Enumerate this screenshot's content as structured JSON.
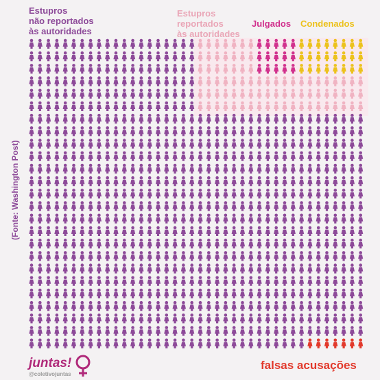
{
  "title_unreported": [
    "Estupros",
    "não reportados",
    "às autoridades"
  ],
  "title_reported": [
    "Estupros",
    "reportados",
    "às autoridades"
  ],
  "source": "(Fonte: Washington Post)",
  "groups": [
    {
      "name": "Julgados",
      "count": 15,
      "color": "#d1318d"
    },
    {
      "name": "Condenados",
      "count": 24,
      "color": "#ecc21d"
    },
    {
      "name": "reportados",
      "count": 81,
      "color": "#f0b3c2"
    },
    {
      "name": "falsas acusações",
      "count": 7,
      "color": "#e2392b"
    },
    {
      "name": "não reportados",
      "count": 873,
      "color": "#8d4a99"
    }
  ],
  "logo": {
    "name": "juntas!",
    "handle": "@coletivojuntas"
  }
}
